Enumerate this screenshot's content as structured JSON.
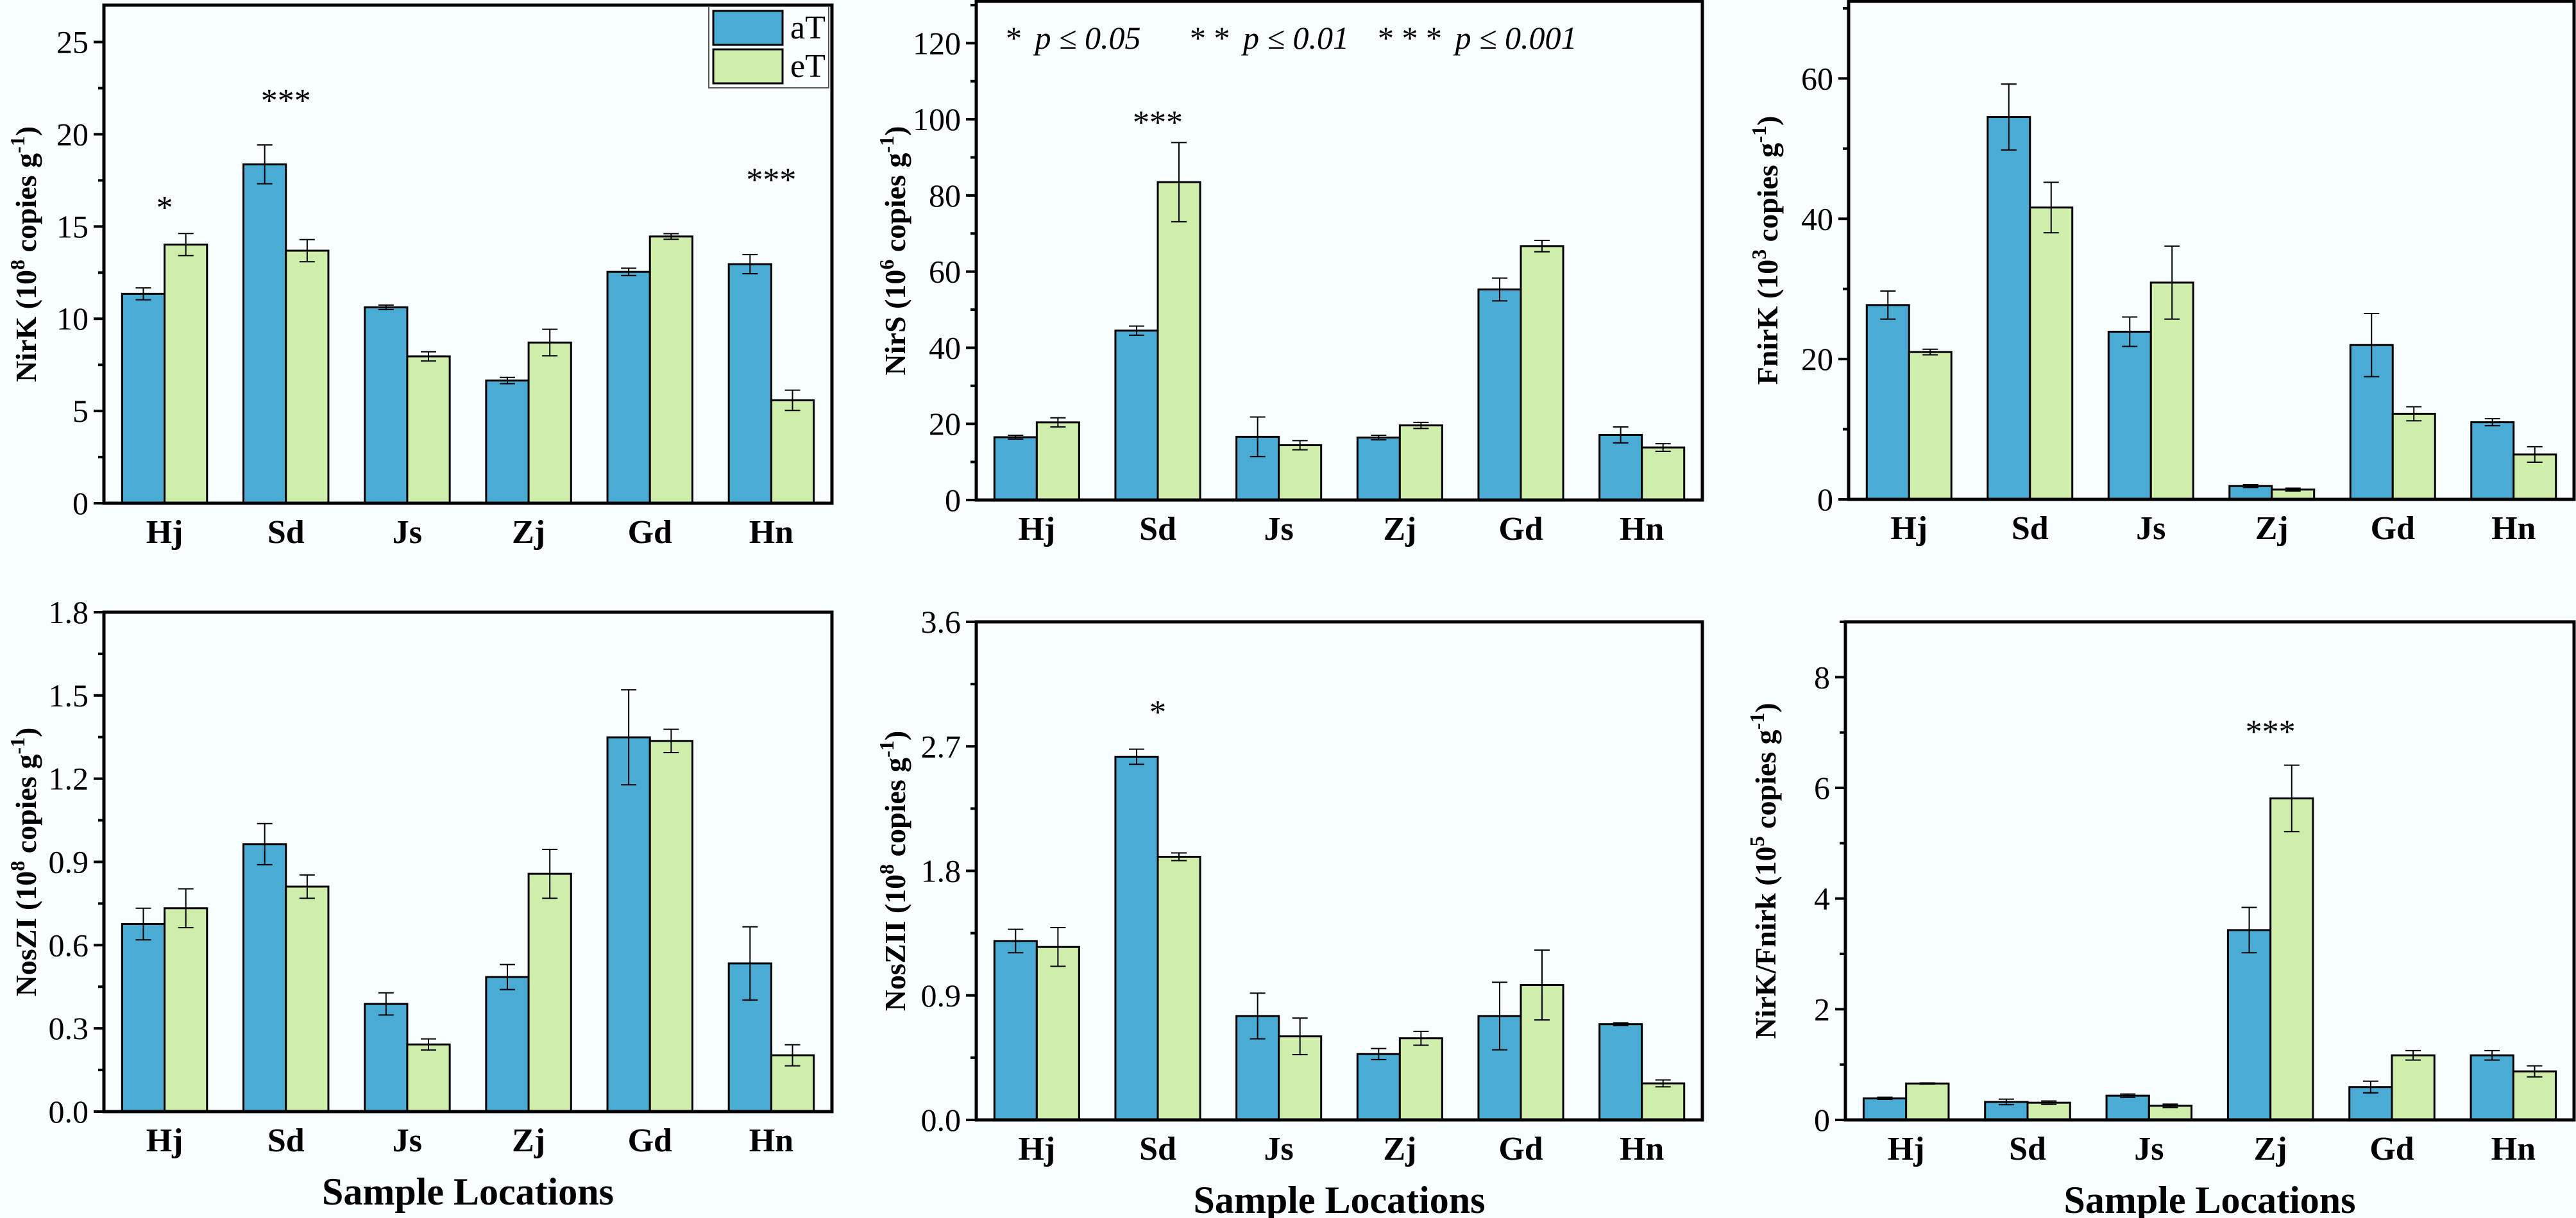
{
  "colors": {
    "aT": "#4aacd5",
    "eT": "#d0eeab",
    "background": "#f8fdff",
    "axis": "#000000"
  },
  "legend": {
    "entries": [
      {
        "key": "aT",
        "label": "aT"
      },
      {
        "key": "eT",
        "label": "eT"
      }
    ]
  },
  "significance_note": {
    "items": [
      {
        "stars": "*",
        "text": "p ≤ 0.05"
      },
      {
        "stars": "* *",
        "text": "p ≤ 0.01"
      },
      {
        "stars": "* * *",
        "text": "p ≤ 0.001"
      }
    ]
  },
  "chart_data": [
    {
      "type": "bar",
      "position": "top-left",
      "ylabel": "NirK (10^8 copies g^-1)",
      "ylabel_parts": {
        "name": "NirK",
        "base": "10",
        "exp": "8",
        "unit": "copies g",
        "unit_exp": "-1"
      },
      "xlabel": "",
      "categories": [
        "Hj",
        "Sd",
        "Js",
        "Zj",
        "Gd",
        "Hn"
      ],
      "ylim": [
        0,
        27
      ],
      "yticks": [
        0,
        5,
        10,
        15,
        20,
        25
      ],
      "ytick_labels": [
        "0",
        "5",
        "10",
        "15",
        "20",
        "25"
      ],
      "minor_step": 2.5,
      "series": [
        {
          "name": "aT",
          "values": [
            11.35,
            18.37,
            10.62,
            6.65,
            12.54,
            12.96
          ],
          "errors": [
            0.32,
            1.05,
            0.12,
            0.17,
            0.2,
            0.52
          ]
        },
        {
          "name": "eT",
          "values": [
            14.02,
            13.69,
            7.96,
            8.71,
            14.46,
            5.58
          ],
          "errors": [
            0.6,
            0.6,
            0.25,
            0.72,
            0.15,
            0.55
          ]
        }
      ],
      "annotations": [
        {
          "category": "Hj",
          "text": "*",
          "y": 16.2
        },
        {
          "category": "Sd",
          "text": "***",
          "y": 22.0
        },
        {
          "category": "Hn",
          "text": "***",
          "y": 17.7
        }
      ],
      "legend": "top-right"
    },
    {
      "type": "bar",
      "position": "top-center",
      "ylabel": "NirS (10^6 copies g^-1)",
      "ylabel_parts": {
        "name": "NirS",
        "base": "10",
        "exp": "6",
        "unit": "copies g",
        "unit_exp": "-1"
      },
      "xlabel": "",
      "categories": [
        "Hj",
        "Sd",
        "Js",
        "Zj",
        "Gd",
        "Hn"
      ],
      "ylim": [
        0,
        131
      ],
      "yticks": [
        0,
        20,
        40,
        60,
        80,
        100,
        120
      ],
      "ytick_labels": [
        "0",
        "20",
        "40",
        "60",
        "80",
        "100",
        "120"
      ],
      "minor_step": 10,
      "series": [
        {
          "name": "aT",
          "values": [
            16.5,
            44.5,
            16.6,
            16.4,
            55.3,
            17.1
          ],
          "errors": [
            0.5,
            1.2,
            5.2,
            0.6,
            3.0,
            2.1
          ]
        },
        {
          "name": "eT",
          "values": [
            20.4,
            83.5,
            14.4,
            19.6,
            66.7,
            13.8
          ],
          "errors": [
            1.2,
            10.4,
            1.2,
            0.8,
            1.5,
            1.0
          ]
        }
      ],
      "annotations": [
        {
          "category": "Sd",
          "text": "***",
          "y": 100
        }
      ]
    },
    {
      "type": "bar",
      "position": "top-right",
      "ylabel": "FnirK (10^3 copies g^-1)",
      "ylabel_parts": {
        "name": "FnirK",
        "base": "10",
        "exp": "3",
        "unit": "copies g",
        "unit_exp": "-1"
      },
      "xlabel": "",
      "categories": [
        "Hj",
        "Sd",
        "Js",
        "Zj",
        "Gd",
        "Hn"
      ],
      "ylim": [
        0,
        71
      ],
      "yticks": [
        0,
        20,
        40,
        60
      ],
      "ytick_labels": [
        "0",
        "20",
        "40",
        "60"
      ],
      "minor_step": 10,
      "series": [
        {
          "name": "aT",
          "values": [
            27.7,
            54.5,
            23.9,
            1.9,
            22.0,
            11.0
          ],
          "errors": [
            2.0,
            4.7,
            2.1,
            0.2,
            4.5,
            0.5
          ]
        },
        {
          "name": "eT",
          "values": [
            21.0,
            41.6,
            30.9,
            1.4,
            12.2,
            6.4
          ],
          "errors": [
            0.4,
            3.6,
            5.2,
            0.2,
            1.0,
            1.1
          ]
        }
      ],
      "annotations": []
    },
    {
      "type": "bar",
      "position": "bottom-left",
      "ylabel": "NosZI (10^8 copies g^-1)",
      "ylabel_parts": {
        "name": "NosZI",
        "base": "10",
        "exp": "8",
        "unit": "copies g",
        "unit_exp": "-1"
      },
      "xlabel": "Sample Locations",
      "categories": [
        "Hj",
        "Sd",
        "Js",
        "Zj",
        "Gd",
        "Hn"
      ],
      "ylim": [
        0,
        1.8
      ],
      "yticks": [
        0,
        0.3,
        0.6,
        0.9,
        1.2,
        1.5,
        1.8
      ],
      "ytick_labels": [
        "0.0",
        "0.3",
        "0.6",
        "0.9",
        "1.2",
        "1.5",
        "1.8"
      ],
      "minor_step": 0.15,
      "series": [
        {
          "name": "aT",
          "values": [
            0.676,
            0.964,
            0.388,
            0.485,
            1.349,
            0.534
          ],
          "errors": [
            0.057,
            0.074,
            0.04,
            0.045,
            0.171,
            0.132
          ]
        },
        {
          "name": "eT",
          "values": [
            0.733,
            0.811,
            0.242,
            0.857,
            1.336,
            0.203
          ],
          "errors": [
            0.07,
            0.042,
            0.02,
            0.088,
            0.042,
            0.038
          ]
        }
      ],
      "annotations": []
    },
    {
      "type": "bar",
      "position": "bottom-center",
      "ylabel": "NosZII (10^8 copies g^-1)",
      "ylabel_parts": {
        "name": "NosZII",
        "base": "10",
        "exp": "8",
        "unit": "copies g",
        "unit_exp": "-1"
      },
      "xlabel": "Sample Locations",
      "categories": [
        "Hj",
        "Sd",
        "Js",
        "Zj",
        "Gd",
        "Hn"
      ],
      "ylim": [
        0,
        3.6
      ],
      "yticks": [
        0,
        0.9,
        1.8,
        2.7,
        3.6
      ],
      "ytick_labels": [
        "0.0",
        "0.9",
        "1.8",
        "2.7",
        "3.6"
      ],
      "minor_step": 0.45,
      "series": [
        {
          "name": "aT",
          "values": [
            1.293,
            2.625,
            0.751,
            0.476,
            0.751,
            0.692
          ],
          "errors": [
            0.085,
            0.055,
            0.165,
            0.04,
            0.244,
            0.01
          ]
        },
        {
          "name": "eT",
          "values": [
            1.25,
            1.902,
            0.604,
            0.59,
            0.975,
            0.264
          ],
          "errors": [
            0.14,
            0.028,
            0.132,
            0.05,
            0.252,
            0.025
          ]
        }
      ],
      "annotations": [
        {
          "category": "Sd",
          "text": "*",
          "y": 2.97
        }
      ]
    },
    {
      "type": "bar",
      "position": "bottom-right",
      "ylabel": "NirK/Fnirk (10^5 copies g^-1)",
      "ylabel_parts": {
        "name": "NirK/Fnirk",
        "base": "10",
        "exp": "5",
        "unit": "copies g",
        "unit_exp": "-1"
      },
      "xlabel": "Sample Locations",
      "categories": [
        "Hj",
        "Sd",
        "Js",
        "Zj",
        "Gd",
        "Hn"
      ],
      "ylim": [
        0,
        9
      ],
      "yticks": [
        0,
        2,
        4,
        6,
        8
      ],
      "ytick_labels": [
        "0",
        "2",
        "4",
        "6",
        "8"
      ],
      "minor_step": 1,
      "series": [
        {
          "name": "aT",
          "values": [
            0.39,
            0.325,
            0.438,
            3.43,
            0.594,
            1.167
          ],
          "errors": [
            0.02,
            0.05,
            0.03,
            0.41,
            0.105,
            0.085
          ]
        },
        {
          "name": "eT",
          "values": [
            0.658,
            0.311,
            0.255,
            5.81,
            1.167,
            0.877
          ],
          "errors": [
            0.01,
            0.03,
            0.03,
            0.6,
            0.085,
            0.1
          ]
        }
      ],
      "annotations": [
        {
          "category": "Zj",
          "text": "***",
          "y": 7.07
        }
      ]
    }
  ]
}
